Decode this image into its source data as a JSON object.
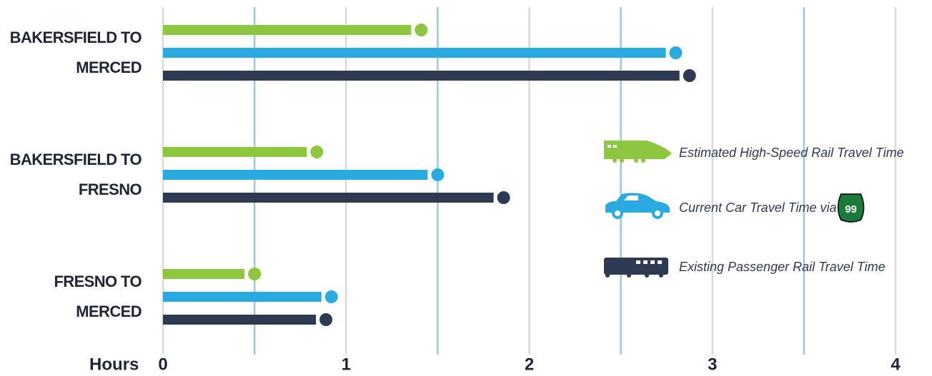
{
  "chart_data": {
    "type": "bar",
    "orientation": "horizontal",
    "categories": [
      "BAKERSFIELD TO MERCED",
      "BAKERSFIELD TO FRESNO",
      "FRESNO TO MERCED"
    ],
    "series": [
      {
        "name": "Estimated High-Speed Rail Travel Time",
        "color": "#8dc63f",
        "values": [
          1.41,
          0.84,
          0.5
        ]
      },
      {
        "name": "Current Car Travel Time via",
        "color": "#29abe2",
        "values": [
          2.8,
          1.5,
          0.92
        ]
      },
      {
        "name": "Existing Passenger Rail Travel Time",
        "color": "#2e3a52",
        "values": [
          2.875,
          1.86,
          0.89
        ]
      }
    ],
    "xlabel": "Hours",
    "xlim": [
      0,
      4
    ],
    "xticks": [
      0,
      1,
      2,
      3,
      4
    ],
    "minor_xticks": [
      0.5,
      1.5,
      2.5,
      3.5
    ],
    "grid": true,
    "grid_color": "#d9d9d9",
    "minor_grid_color": "#8fcde6",
    "route_shield": "99",
    "legend": "right"
  }
}
